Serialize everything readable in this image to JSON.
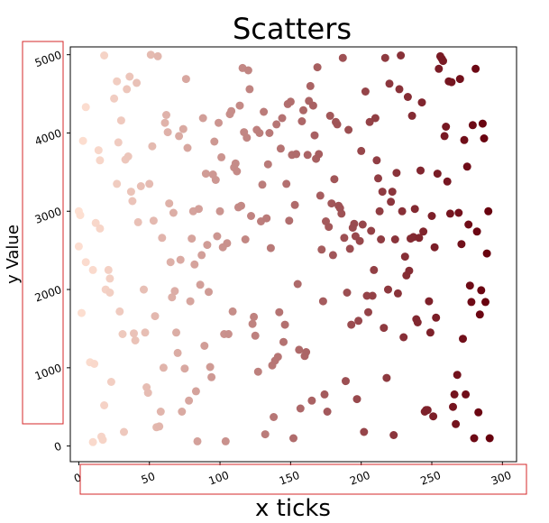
{
  "chart_data": {
    "type": "scatter",
    "title": "Scatters",
    "xlabel": "x ticks",
    "ylabel": "y Value",
    "xlim": [
      -6,
      310
    ],
    "ylim": [
      -200,
      5100
    ],
    "xticks": [
      0,
      50,
      100,
      150,
      200,
      250,
      300
    ],
    "yticks": [
      0,
      1000,
      2000,
      3000,
      4000,
      5000
    ],
    "tick_rotation_deg": 20,
    "grid": false,
    "colormap": "Reds",
    "color_scale_from": "#fee0d2",
    "color_scale_to": "#67000d",
    "highlight_box_color": "#d62728",
    "points": [
      [
        0,
        3000
      ],
      [
        1,
        2950
      ],
      [
        0,
        2550
      ],
      [
        2,
        1700
      ],
      [
        3,
        3900
      ],
      [
        5,
        4330
      ],
      [
        5,
        2350
      ],
      [
        8,
        1070
      ],
      [
        10,
        2250
      ],
      [
        10,
        50
      ],
      [
        11,
        1050
      ],
      [
        12,
        2850
      ],
      [
        14,
        3780
      ],
      [
        15,
        3650
      ],
      [
        15,
        2780
      ],
      [
        16,
        120
      ],
      [
        17,
        80
      ],
      [
        18,
        4990
      ],
      [
        18,
        520
      ],
      [
        19,
        2000
      ],
      [
        21,
        2250
      ],
      [
        22,
        2140
      ],
      [
        22,
        1960
      ],
      [
        23,
        820
      ],
      [
        25,
        4440
      ],
      [
        27,
        4660
      ],
      [
        27,
        3350
      ],
      [
        28,
        3880
      ],
      [
        29,
        1720
      ],
      [
        30,
        4160
      ],
      [
        31,
        1430
      ],
      [
        32,
        180
      ],
      [
        33,
        3660
      ],
      [
        34,
        4560
      ],
      [
        35,
        3700
      ],
      [
        36,
        4720
      ],
      [
        37,
        3250
      ],
      [
        38,
        3130
      ],
      [
        39,
        1440
      ],
      [
        40,
        1350
      ],
      [
        41,
        4640
      ],
      [
        42,
        2860
      ],
      [
        44,
        3320
      ],
      [
        46,
        2000
      ],
      [
        47,
        1450
      ],
      [
        48,
        750
      ],
      [
        49,
        680
      ],
      [
        50,
        3350
      ],
      [
        51,
        5000
      ],
      [
        52,
        3830
      ],
      [
        53,
        2880
      ],
      [
        54,
        1660
      ],
      [
        55,
        240
      ],
      [
        56,
        4980
      ],
      [
        57,
        250
      ],
      [
        58,
        440
      ],
      [
        59,
        2660
      ],
      [
        60,
        1000
      ],
      [
        61,
        4130
      ],
      [
        62,
        4230
      ],
      [
        63,
        4010
      ],
      [
        64,
        3100
      ],
      [
        65,
        2350
      ],
      [
        66,
        1900
      ],
      [
        67,
        2980
      ],
      [
        68,
        1980
      ],
      [
        69,
        1450
      ],
      [
        70,
        1190
      ],
      [
        71,
        3960
      ],
      [
        72,
        2380
      ],
      [
        73,
        440
      ],
      [
        74,
        4050
      ],
      [
        75,
        990
      ],
      [
        76,
        4690
      ],
      [
        77,
        3810
      ],
      [
        78,
        580
      ],
      [
        79,
        1850
      ],
      [
        80,
        2650
      ],
      [
        81,
        3000
      ],
      [
        82,
        2320
      ],
      [
        83,
        700
      ],
      [
        84,
        60
      ],
      [
        85,
        3030
      ],
      [
        86,
        2060
      ],
      [
        87,
        2440
      ],
      [
        88,
        4190
      ],
      [
        89,
        1280
      ],
      [
        90,
        3480
      ],
      [
        91,
        2570
      ],
      [
        92,
        1970
      ],
      [
        93,
        1010
      ],
      [
        94,
        880
      ],
      [
        95,
        3470
      ],
      [
        96,
        3890
      ],
      [
        97,
        3400
      ],
      [
        98,
        2680
      ],
      [
        99,
        4130
      ],
      [
        100,
        3000
      ],
      [
        101,
        3690
      ],
      [
        102,
        2540
      ],
      [
        103,
        1430
      ],
      [
        104,
        60
      ],
      [
        105,
        2590
      ],
      [
        106,
        1430
      ],
      [
        107,
        4240
      ],
      [
        108,
        4280
      ],
      [
        109,
        1720
      ],
      [
        110,
        3560
      ],
      [
        111,
        3610
      ],
      [
        112,
        3510
      ],
      [
        113,
        3050
      ],
      [
        114,
        4350
      ],
      [
        115,
        3070
      ],
      [
        116,
        4830
      ],
      [
        117,
        4010
      ],
      [
        118,
        2640
      ],
      [
        119,
        3940
      ],
      [
        120,
        4800
      ],
      [
        121,
        4560
      ],
      [
        122,
        2940
      ],
      [
        123,
        1560
      ],
      [
        124,
        1650
      ],
      [
        125,
        1410
      ],
      [
        126,
        4040
      ],
      [
        127,
        950
      ],
      [
        128,
        4000
      ],
      [
        129,
        2870
      ],
      [
        130,
        3340
      ],
      [
        131,
        4270
      ],
      [
        132,
        150
      ],
      [
        133,
        2910
      ],
      [
        134,
        3600
      ],
      [
        135,
        4000
      ],
      [
        136,
        2530
      ],
      [
        137,
        1030
      ],
      [
        138,
        370
      ],
      [
        139,
        1090
      ],
      [
        140,
        4110
      ],
      [
        141,
        1140
      ],
      [
        142,
        1710
      ],
      [
        143,
        3800
      ],
      [
        144,
        4190
      ],
      [
        145,
        1330
      ],
      [
        146,
        1550
      ],
      [
        147,
        3350
      ],
      [
        148,
        4370
      ],
      [
        149,
        2880
      ],
      [
        150,
        4400
      ],
      [
        151,
        3720
      ],
      [
        152,
        100
      ],
      [
        153,
        3080
      ],
      [
        154,
        3730
      ],
      [
        155,
        2070
      ],
      [
        156,
        1230
      ],
      [
        157,
        480
      ],
      [
        158,
        4150
      ],
      [
        159,
        4290
      ],
      [
        160,
        1150
      ],
      [
        161,
        1200
      ],
      [
        162,
        3720
      ],
      [
        163,
        4410
      ],
      [
        164,
        4600
      ],
      [
        165,
        580
      ],
      [
        166,
        4350
      ],
      [
        167,
        3970
      ],
      [
        168,
        3670
      ],
      [
        169,
        4840
      ],
      [
        170,
        3730
      ],
      [
        171,
        3200
      ],
      [
        172,
        2510
      ],
      [
        173,
        1850
      ],
      [
        174,
        660
      ],
      [
        175,
        2870
      ],
      [
        176,
        440
      ],
      [
        177,
        2800
      ],
      [
        178,
        4220
      ],
      [
        179,
        3100
      ],
      [
        180,
        2440
      ],
      [
        181,
        3410
      ],
      [
        182,
        4140
      ],
      [
        183,
        4110
      ],
      [
        184,
        3070
      ],
      [
        185,
        3040
      ],
      [
        186,
        2970
      ],
      [
        187,
        4960
      ],
      [
        188,
        2660
      ],
      [
        189,
        830
      ],
      [
        190,
        1960
      ],
      [
        191,
        4040
      ],
      [
        192,
        2520
      ],
      [
        193,
        1550
      ],
      [
        194,
        2790
      ],
      [
        195,
        2840
      ],
      [
        196,
        2680
      ],
      [
        197,
        600
      ],
      [
        198,
        1600
      ],
      [
        199,
        2620
      ],
      [
        200,
        3770
      ],
      [
        201,
        2830
      ],
      [
        202,
        180
      ],
      [
        203,
        4530
      ],
      [
        204,
        1920
      ],
      [
        205,
        1710
      ],
      [
        206,
        4140
      ],
      [
        207,
        2750
      ],
      [
        208,
        1920
      ],
      [
        209,
        2250
      ],
      [
        210,
        4190
      ],
      [
        211,
        3650
      ],
      [
        212,
        3420
      ],
      [
        213,
        3000
      ],
      [
        214,
        2640
      ],
      [
        215,
        3250
      ],
      [
        216,
        1510
      ],
      [
        217,
        4960
      ],
      [
        218,
        870
      ],
      [
        219,
        2000
      ],
      [
        220,
        4630
      ],
      [
        221,
        3120
      ],
      [
        222,
        3250
      ],
      [
        223,
        140
      ],
      [
        224,
        2640
      ],
      [
        225,
        3490
      ],
      [
        226,
        1950
      ],
      [
        227,
        4560
      ],
      [
        228,
        4990
      ],
      [
        229,
        3000
      ],
      [
        230,
        1390
      ],
      [
        231,
        2420
      ],
      [
        232,
        2180
      ],
      [
        233,
        4460
      ],
      [
        234,
        2240
      ],
      [
        235,
        2650
      ],
      [
        236,
        4220
      ],
      [
        237,
        2670
      ],
      [
        238,
        3030
      ],
      [
        239,
        1620
      ],
      [
        240,
        1580
      ],
      [
        241,
        2660
      ],
      [
        242,
        3520
      ],
      [
        243,
        4390
      ],
      [
        244,
        2740
      ],
      [
        245,
        440
      ],
      [
        246,
        460
      ],
      [
        247,
        460
      ],
      [
        248,
        1850
      ],
      [
        249,
        1450
      ],
      [
        250,
        2940
      ],
      [
        251,
        380
      ],
      [
        252,
        2540
      ],
      [
        253,
        1640
      ],
      [
        254,
        3480
      ],
      [
        255,
        4820
      ],
      [
        256,
        4980
      ],
      [
        257,
        4950
      ],
      [
        258,
        4920
      ],
      [
        259,
        3960
      ],
      [
        260,
        4080
      ],
      [
        261,
        3380
      ],
      [
        262,
        4660
      ],
      [
        263,
        2970
      ],
      [
        264,
        4650
      ],
      [
        265,
        500
      ],
      [
        266,
        660
      ],
      [
        267,
        280
      ],
      [
        268,
        910
      ],
      [
        269,
        2980
      ],
      [
        270,
        4690
      ],
      [
        271,
        2580
      ],
      [
        272,
        1370
      ],
      [
        273,
        3910
      ],
      [
        274,
        660
      ],
      [
        275,
        3570
      ],
      [
        276,
        2830
      ],
      [
        277,
        2050
      ],
      [
        278,
        1840
      ],
      [
        279,
        4100
      ],
      [
        280,
        100
      ],
      [
        281,
        4820
      ],
      [
        282,
        2740
      ],
      [
        283,
        430
      ],
      [
        284,
        1680
      ],
      [
        285,
        1990
      ],
      [
        286,
        4120
      ],
      [
        287,
        3930
      ],
      [
        288,
        1840
      ],
      [
        289,
        2460
      ],
      [
        290,
        3000
      ],
      [
        291,
        100
      ]
    ]
  }
}
